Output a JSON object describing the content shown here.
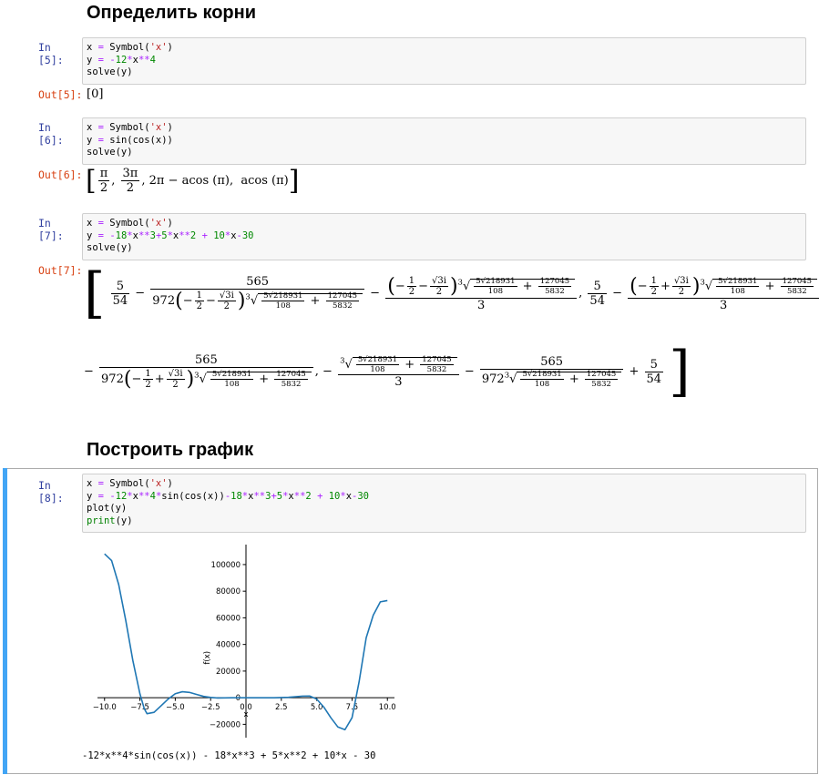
{
  "headings": {
    "roots": "Определить корни",
    "plot": "Построить график"
  },
  "cells": [
    {
      "in_prompt": "In [5]:",
      "out_prompt": "Out[5]:",
      "code": [
        "x = Symbol('x')",
        "y = -12*x**4",
        "solve(y)"
      ],
      "output": "[0]"
    },
    {
      "in_prompt": "In [6]:",
      "out_prompt": "Out[6]:",
      "code": [
        "x = Symbol('x')",
        "y = sin(cos(x))",
        "solve(y)"
      ],
      "output": {
        "t1_num": "π",
        "t1_den": "2",
        "t2_num": "3π",
        "t2_den": "2",
        "t3": "2π − acos (π),",
        "t4": "acos (π)"
      }
    },
    {
      "in_prompt": "In [7]:",
      "out_prompt": "Out[7]:",
      "code": [
        "x = Symbol('x')",
        "y = -18*x**3+5*x**2 + 10*x-30",
        "solve(y)"
      ],
      "output": {
        "n5": "5",
        "d54": "54",
        "n565": "565",
        "c972": "972",
        "half": "1",
        "two": "2",
        "sqrt3i": "√3i",
        "root_inner_num": "5√218931",
        "root_inner_den": "108",
        "frac2_num": "127045",
        "frac2_den": "5832",
        "three": "3",
        "cube": "3"
      }
    },
    {
      "in_prompt": "In [8]:",
      "code": [
        "x = Symbol('x')",
        "y = -12*x**4*sin(cos(x))-18*x**3+5*x**2 + 10*x-30",
        "plot(y)",
        "print(y)"
      ],
      "stdout": "-12*x**4*sin(cos(x)) - 18*x**3 + 5*x**2 + 10*x - 30"
    }
  ],
  "chart_data": {
    "type": "line",
    "xlabel": "x",
    "ylabel": "f(x)",
    "xlim": [
      -10.5,
      10.5
    ],
    "ylim": [
      -30000,
      115000
    ],
    "xticks": [
      "−10.0",
      "−7.5",
      "−5.0",
      "−2.5",
      "0.0",
      "2.5",
      "5.0",
      "7.5",
      "10.0"
    ],
    "yticks": [
      "−20000",
      "0",
      "20000",
      "40000",
      "60000",
      "80000",
      "100000"
    ],
    "series": [
      {
        "color": "#1f77b4",
        "x": [
          -10,
          -9.5,
          -9,
          -8.5,
          -8,
          -7.5,
          -7.2,
          -7,
          -6.5,
          -6,
          -5.5,
          -5,
          -4.5,
          -4,
          -3.5,
          -3,
          -2.5,
          -2,
          -1,
          0,
          1,
          2,
          3,
          4,
          4.5,
          5,
          5.5,
          6,
          6.5,
          7,
          7.5,
          8,
          8.5,
          9,
          9.5,
          10
        ],
        "y": [
          108000,
          103000,
          85000,
          58000,
          28000,
          3000,
          -8000,
          -12000,
          -11000,
          -6000,
          -1000,
          3000,
          4500,
          4000,
          2500,
          1000,
          200,
          -200,
          -50,
          -30,
          -20,
          0,
          300,
          1200,
          1300,
          -1000,
          -7000,
          -15000,
          -22000,
          -24000,
          -15000,
          12000,
          45000,
          62000,
          72000,
          73000
        ]
      }
    ]
  }
}
